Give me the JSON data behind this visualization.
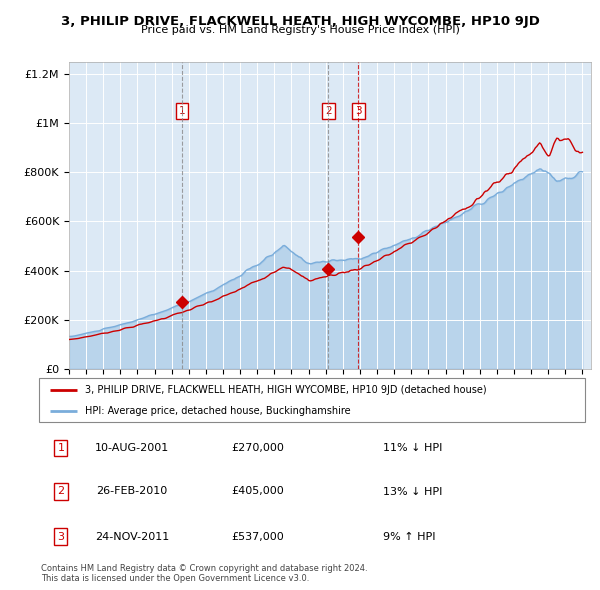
{
  "title": "3, PHILIP DRIVE, FLACKWELL HEATH, HIGH WYCOMBE, HP10 9JD",
  "subtitle": "Price paid vs. HM Land Registry's House Price Index (HPI)",
  "ylabel_ticks": [
    "£0",
    "£200K",
    "£400K",
    "£600K",
    "£800K",
    "£1M",
    "£1.2M"
  ],
  "ytick_values": [
    0,
    200000,
    400000,
    600000,
    800000,
    1000000,
    1200000
  ],
  "ylim": [
    0,
    1300000
  ],
  "xlim_start": 1995.0,
  "xlim_end": 2025.5,
  "transactions": [
    {
      "num": 1,
      "date": "10-AUG-2001",
      "price": 270000,
      "year": 2001.6,
      "pct": "11%",
      "dir": "↓"
    },
    {
      "num": 2,
      "date": "26-FEB-2010",
      "price": 405000,
      "year": 2010.15,
      "pct": "13%",
      "dir": "↓"
    },
    {
      "num": 3,
      "date": "24-NOV-2011",
      "price": 537000,
      "year": 2011.9,
      "pct": "9%",
      "dir": "↑"
    }
  ],
  "legend_line1": "3, PHILIP DRIVE, FLACKWELL HEATH, HIGH WYCOMBE, HP10 9JD (detached house)",
  "legend_line2": "HPI: Average price, detached house, Buckinghamshire",
  "footer1": "Contains HM Land Registry data © Crown copyright and database right 2024.",
  "footer2": "This data is licensed under the Open Government Licence v3.0.",
  "red_color": "#cc0000",
  "blue_color": "#7aaddb",
  "bg_color": "#dce9f5",
  "xtick_years": [
    1995,
    1996,
    1997,
    1998,
    1999,
    2000,
    2001,
    2002,
    2003,
    2004,
    2005,
    2006,
    2007,
    2008,
    2009,
    2010,
    2011,
    2012,
    2013,
    2014,
    2015,
    2016,
    2017,
    2018,
    2019,
    2020,
    2021,
    2022,
    2023,
    2024,
    2025
  ]
}
